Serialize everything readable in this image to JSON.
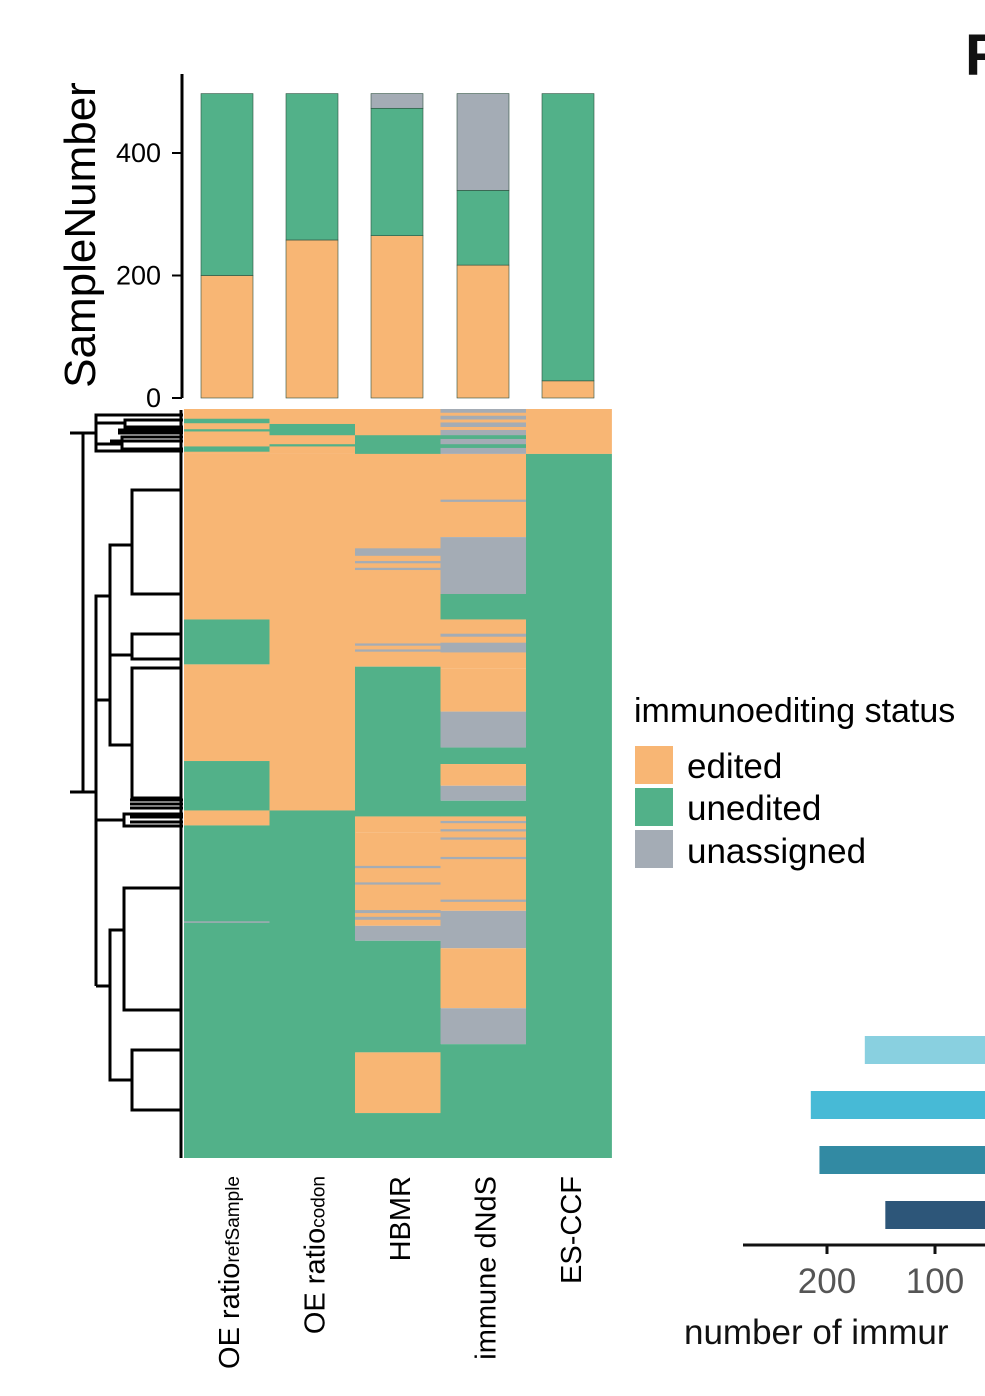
{
  "panel_letter": "F",
  "colors": {
    "edited": "#f8b674",
    "unedited": "#52b189",
    "unassigned": "#a4acb5",
    "axis": "#000000",
    "tick_text": "#000000"
  },
  "legend": {
    "title": "immunoediting status",
    "items": [
      {
        "key": "edited",
        "label": "edited"
      },
      {
        "key": "unedited",
        "label": "unedited"
      },
      {
        "key": "unassigned",
        "label": "unassigned"
      }
    ]
  },
  "chart_data": [
    {
      "type": "bar",
      "stacked": true,
      "ylabel": "SampleNumber",
      "ylim": [
        0,
        500
      ],
      "yticks": [
        0,
        200,
        400
      ],
      "categories": [
        "OE ratio refSample",
        "OE ratio codon",
        "HBMR",
        "immune dNdS",
        "ES-CCF"
      ],
      "series": [
        {
          "name": "edited",
          "values": [
            200,
            258,
            265,
            217,
            28
          ]
        },
        {
          "name": "unedited",
          "values": [
            297,
            239,
            208,
            122,
            469
          ]
        },
        {
          "name": "unassigned",
          "values": [
            0,
            0,
            24,
            158,
            0
          ]
        }
      ]
    },
    {
      "type": "heatmap",
      "columns": [
        {
          "label": "OE ratio",
          "sub": "refSample"
        },
        {
          "label": "OE ratio",
          "sub": "codon"
        },
        {
          "label": "HBMR",
          "sub": ""
        },
        {
          "label": "immune dNdS",
          "sub": ""
        },
        {
          "label": "ES-CCF",
          "sub": ""
        }
      ],
      "row_fraction_scale": [
        0,
        1
      ],
      "blocks": [
        [
          {
            "y0": 0,
            "y1": 0.06,
            "s": "edited"
          },
          {
            "y0": 0.013,
            "y1": 0.019,
            "s": "unedited"
          },
          {
            "y0": 0.027,
            "y1": 0.03,
            "s": "unedited"
          },
          {
            "y0": 0.05,
            "y1": 0.057,
            "s": "unedited"
          },
          {
            "y0": 0.06,
            "y1": 0.281,
            "s": "edited"
          },
          {
            "y0": 0.281,
            "y1": 0.341,
            "s": "unedited"
          },
          {
            "y0": 0.341,
            "y1": 0.47,
            "s": "edited"
          },
          {
            "y0": 0.47,
            "y1": 0.536,
            "s": "unedited"
          },
          {
            "y0": 0.536,
            "y1": 0.556,
            "s": "edited"
          },
          {
            "y0": 0.556,
            "y1": 1.0,
            "s": "unedited"
          },
          {
            "y0": 0.684,
            "y1": 0.686,
            "s": "unassigned"
          }
        ],
        [
          {
            "y0": 0,
            "y1": 0.06,
            "s": "edited"
          },
          {
            "y0": 0.02,
            "y1": 0.035,
            "s": "unedited"
          },
          {
            "y0": 0.047,
            "y1": 0.05,
            "s": "unedited"
          },
          {
            "y0": 0.06,
            "y1": 0.536,
            "s": "edited"
          },
          {
            "y0": 0.536,
            "y1": 1.0,
            "s": "unedited"
          }
        ],
        [
          {
            "y0": 0,
            "y1": 0.06,
            "s": "edited"
          },
          {
            "y0": 0.035,
            "y1": 0.06,
            "s": "unedited"
          },
          {
            "y0": 0.06,
            "y1": 0.344,
            "s": "edited"
          },
          {
            "y0": 0.186,
            "y1": 0.196,
            "s": "unassigned"
          },
          {
            "y0": 0.203,
            "y1": 0.206,
            "s": "unassigned"
          },
          {
            "y0": 0.212,
            "y1": 0.215,
            "s": "unassigned"
          },
          {
            "y0": 0.313,
            "y1": 0.316,
            "s": "unassigned"
          },
          {
            "y0": 0.321,
            "y1": 0.324,
            "s": "unassigned"
          },
          {
            "y0": 0.344,
            "y1": 0.544,
            "s": "unedited"
          },
          {
            "y0": 0.544,
            "y1": 0.565,
            "s": "edited"
          },
          {
            "y0": 0.565,
            "y1": 0.69,
            "s": "edited"
          },
          {
            "y0": 0.61,
            "y1": 0.613,
            "s": "unassigned"
          },
          {
            "y0": 0.632,
            "y1": 0.635,
            "s": "unassigned"
          },
          {
            "y0": 0.669,
            "y1": 0.673,
            "s": "unassigned"
          },
          {
            "y0": 0.678,
            "y1": 0.682,
            "s": "unassigned"
          },
          {
            "y0": 0.69,
            "y1": 0.71,
            "s": "unassigned"
          },
          {
            "y0": 0.71,
            "y1": 0.859,
            "s": "unedited"
          },
          {
            "y0": 0.859,
            "y1": 0.94,
            "s": "edited"
          },
          {
            "y0": 0.94,
            "y1": 1.0,
            "s": "unedited"
          }
        ],
        [
          {
            "y0": 0,
            "y1": 0.06,
            "s": "unassigned"
          },
          {
            "y0": 0.005,
            "y1": 0.009,
            "s": "edited"
          },
          {
            "y0": 0.014,
            "y1": 0.018,
            "s": "edited"
          },
          {
            "y0": 0.024,
            "y1": 0.028,
            "s": "edited"
          },
          {
            "y0": 0.035,
            "y1": 0.04,
            "s": "unedited"
          },
          {
            "y0": 0.047,
            "y1": 0.052,
            "s": "unedited"
          },
          {
            "y0": 0.06,
            "y1": 0.171,
            "s": "edited"
          },
          {
            "y0": 0.121,
            "y1": 0.124,
            "s": "unassigned"
          },
          {
            "y0": 0.171,
            "y1": 0.247,
            "s": "unassigned"
          },
          {
            "y0": 0.247,
            "y1": 0.281,
            "s": "unedited"
          },
          {
            "y0": 0.281,
            "y1": 0.346,
            "s": "edited"
          },
          {
            "y0": 0.3,
            "y1": 0.304,
            "s": "unassigned"
          },
          {
            "y0": 0.312,
            "y1": 0.325,
            "s": "unassigned"
          },
          {
            "y0": 0.346,
            "y1": 0.404,
            "s": "edited"
          },
          {
            "y0": 0.404,
            "y1": 0.452,
            "s": "unassigned"
          },
          {
            "y0": 0.452,
            "y1": 0.474,
            "s": "unedited"
          },
          {
            "y0": 0.474,
            "y1": 0.503,
            "s": "edited"
          },
          {
            "y0": 0.503,
            "y1": 0.523,
            "s": "unassigned"
          },
          {
            "y0": 0.523,
            "y1": 0.544,
            "s": "unedited"
          },
          {
            "y0": 0.544,
            "y1": 0.67,
            "s": "edited"
          },
          {
            "y0": 0.55,
            "y1": 0.553,
            "s": "unassigned"
          },
          {
            "y0": 0.561,
            "y1": 0.564,
            "s": "unassigned"
          },
          {
            "y0": 0.572,
            "y1": 0.575,
            "s": "unassigned"
          },
          {
            "y0": 0.598,
            "y1": 0.601,
            "s": "unassigned"
          },
          {
            "y0": 0.655,
            "y1": 0.658,
            "s": "unassigned"
          },
          {
            "y0": 0.67,
            "y1": 0.72,
            "s": "unassigned"
          },
          {
            "y0": 0.72,
            "y1": 0.8,
            "s": "edited"
          },
          {
            "y0": 0.8,
            "y1": 0.848,
            "s": "unassigned"
          },
          {
            "y0": 0.848,
            "y1": 1.0,
            "s": "unedited"
          }
        ],
        [
          {
            "y0": 0,
            "y1": 0.06,
            "s": "edited"
          },
          {
            "y0": 0.06,
            "y1": 1.0,
            "s": "unedited"
          }
        ]
      ]
    },
    {
      "type": "bar",
      "orientation": "horizontal",
      "partially_visible": true,
      "xlabel": "number of immur",
      "xticks": [
        200,
        100
      ],
      "series": [
        {
          "values": [
            165,
            215,
            207,
            146
          ],
          "colors": [
            "#89d0e0",
            "#47bad6",
            "#328aa3",
            "#2d5679"
          ]
        }
      ]
    }
  ]
}
